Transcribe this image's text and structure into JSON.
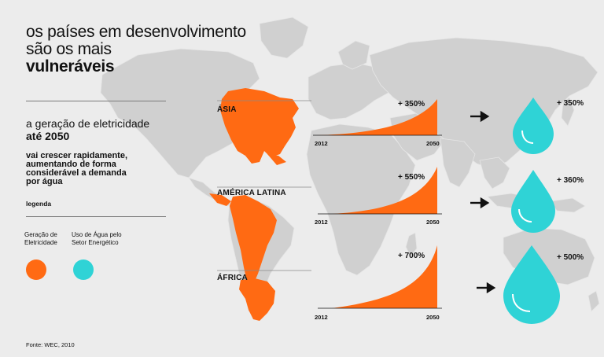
{
  "title": {
    "line1": "os países em desenvolvimento",
    "line2": "são os mais",
    "line3": "vulneráveis"
  },
  "subtitle": {
    "line1": "a geração de eletricidade",
    "line2": "até 2050"
  },
  "description": {
    "line1": "vai crescer rapidamente,",
    "line2": "aumentando de forma",
    "line3": "considerável a demanda",
    "line4": "por água"
  },
  "legend": {
    "label": "legenda",
    "electricity": {
      "line1": "Geração de",
      "line2": "Eletricidade",
      "color": "#ff6a13"
    },
    "water": {
      "line1": "Uso de Água pelo",
      "line2": "Setor Energético",
      "color": "#2fd3d6"
    }
  },
  "source": "Fonte: WEC, 2010",
  "regions": [
    {
      "name": "ÁSIA",
      "electricity_growth": "+ 350%",
      "water_growth": "+ 350%",
      "start_year": "2012",
      "end_year": "2050"
    },
    {
      "name": "AMÉRICA LATINA",
      "electricity_growth": "+ 550%",
      "water_growth": "+ 360%",
      "start_year": "2012",
      "end_year": "2050"
    },
    {
      "name": "ÁFRICA",
      "electricity_growth": "+ 700%",
      "water_growth": "+ 500%",
      "start_year": "2012",
      "end_year": "2050"
    }
  ],
  "colors": {
    "background": "#ececec",
    "land": "#cfcfcf",
    "accent_orange": "#ff6a13",
    "accent_cyan": "#2fd3d6"
  }
}
